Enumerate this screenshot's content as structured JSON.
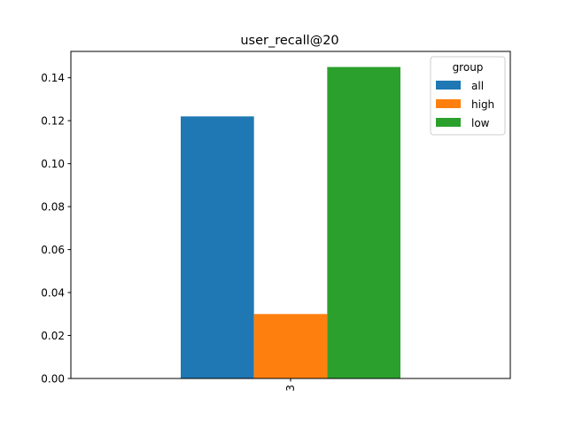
{
  "chart_data": {
    "type": "bar",
    "title": "user_recall@20",
    "xlabel": "",
    "ylabel": "",
    "categories": [
      "3"
    ],
    "series": [
      {
        "name": "all",
        "values": [
          0.122
        ],
        "color": "#1f77b4"
      },
      {
        "name": "high",
        "values": [
          0.03
        ],
        "color": "#ff7f0e"
      },
      {
        "name": "low",
        "values": [
          0.145
        ],
        "color": "#2ca02c"
      }
    ],
    "ylim": [
      0.0,
      0.15225
    ],
    "yticks": [
      "0.00",
      "0.02",
      "0.04",
      "0.06",
      "0.08",
      "0.10",
      "0.12",
      "0.14"
    ],
    "xtick_rotation": "vertical",
    "grid": false,
    "legend": {
      "title": "group",
      "placement": "top-right",
      "entries": [
        "all",
        "high",
        "low"
      ]
    }
  }
}
